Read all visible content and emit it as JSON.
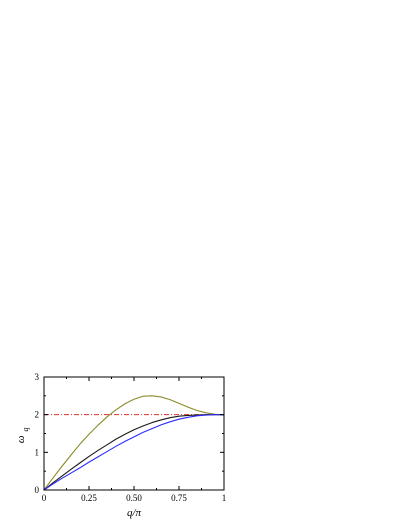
{
  "chart_data": {
    "type": "line",
    "xlabel": "q/π",
    "ylabel": {
      "main": "ω",
      "sub": "q"
    },
    "xlim": [
      0,
      1
    ],
    "ylim": [
      0,
      3
    ],
    "x_ticks": [
      0,
      0.25,
      0.5,
      0.75,
      1
    ],
    "x_tick_labels": [
      "0",
      "0.25",
      "0.50",
      "0.75",
      "1"
    ],
    "y_ticks": [
      0,
      1,
      2,
      3
    ],
    "y_tick_labels": [
      "0",
      "1",
      "2",
      "3"
    ],
    "grid": false,
    "legend": false,
    "colors": {
      "olive": "#8b8b2a",
      "black": "#1a1a1a",
      "blue": "#2b2bff",
      "reference": "#e0302a"
    },
    "series": [
      {
        "color_key": "olive",
        "x": [
          0,
          0.05,
          0.1,
          0.15,
          0.2,
          0.25,
          0.3,
          0.35,
          0.4,
          0.45,
          0.5,
          0.55,
          0.6,
          0.65,
          0.7,
          0.75,
          0.8,
          0.85,
          0.9,
          0.95,
          1
        ],
        "y": [
          0,
          0.32,
          0.63,
          0.93,
          1.22,
          1.48,
          1.72,
          1.94,
          2.13,
          2.29,
          2.41,
          2.49,
          2.5,
          2.47,
          2.4,
          2.3,
          2.2,
          2.11,
          2.05,
          2.01,
          2.0
        ]
      },
      {
        "color_key": "black",
        "x": [
          0,
          0.05,
          0.1,
          0.15,
          0.2,
          0.25,
          0.3,
          0.35,
          0.4,
          0.45,
          0.5,
          0.55,
          0.6,
          0.65,
          0.7,
          0.75,
          0.8,
          0.85,
          0.9,
          0.95,
          1
        ],
        "y": [
          0,
          0.19,
          0.37,
          0.55,
          0.72,
          0.89,
          1.05,
          1.2,
          1.35,
          1.48,
          1.6,
          1.7,
          1.79,
          1.86,
          1.92,
          1.96,
          1.98,
          1.99,
          2.0,
          2.0,
          2.0
        ]
      },
      {
        "color_key": "blue",
        "x": [
          0,
          0.05,
          0.1,
          0.15,
          0.2,
          0.25,
          0.3,
          0.35,
          0.4,
          0.45,
          0.5,
          0.55,
          0.6,
          0.65,
          0.7,
          0.75,
          0.8,
          0.85,
          0.9,
          0.95,
          1
        ],
        "y": [
          0,
          0.16,
          0.31,
          0.45,
          0.59,
          0.74,
          0.88,
          1.02,
          1.16,
          1.29,
          1.41,
          1.53,
          1.63,
          1.73,
          1.81,
          1.88,
          1.93,
          1.97,
          1.99,
          2.0,
          2.0
        ]
      }
    ],
    "reference_line": {
      "y": 2,
      "style": "dash-dot",
      "color_key": "reference"
    }
  }
}
